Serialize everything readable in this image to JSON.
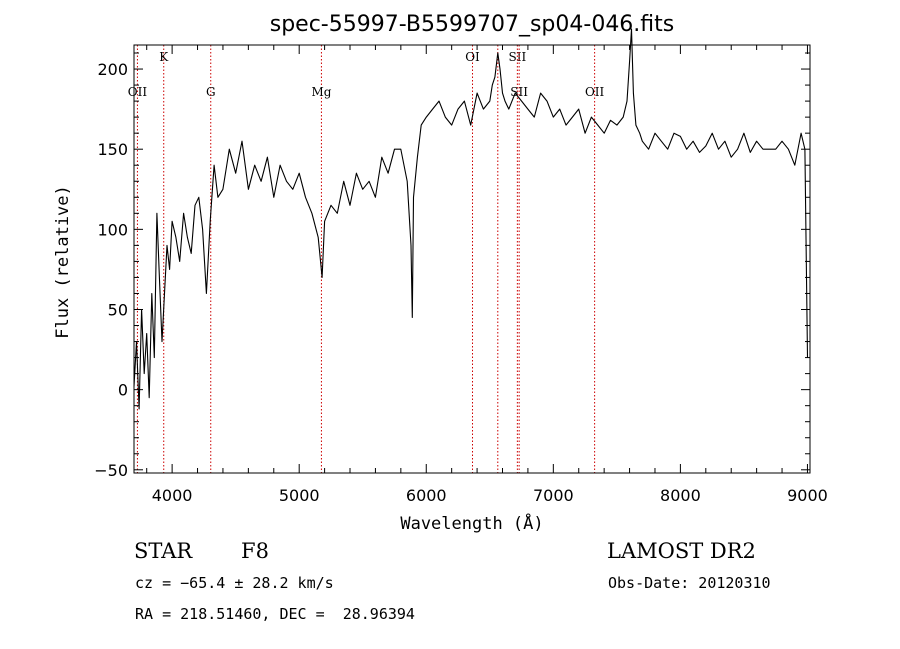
{
  "chart_data": {
    "type": "line",
    "title": "spec-55997-B5599707_sp04-046.fits",
    "xlabel": "Wavelength (Å)",
    "ylabel": "Flux (relative)",
    "xlim": [
      3700,
      9020
    ],
    "ylim": [
      -52,
      215
    ],
    "x_ticks": [
      4000,
      5000,
      6000,
      7000,
      8000,
      9000
    ],
    "y_ticks": [
      -50,
      0,
      50,
      100,
      150,
      200
    ],
    "grid": false,
    "series": [
      {
        "color": "#000000",
        "x": [
          3700,
          3720,
          3740,
          3760,
          3780,
          3800,
          3820,
          3840,
          3860,
          3880,
          3900,
          3920,
          3940,
          3960,
          3980,
          4000,
          4030,
          4060,
          4090,
          4120,
          4150,
          4180,
          4210,
          4240,
          4270,
          4300,
          4330,
          4360,
          4400,
          4450,
          4500,
          4550,
          4600,
          4650,
          4700,
          4750,
          4800,
          4850,
          4900,
          4950,
          5000,
          5050,
          5100,
          5150,
          5180,
          5200,
          5250,
          5300,
          5350,
          5400,
          5450,
          5500,
          5550,
          5600,
          5650,
          5700,
          5750,
          5800,
          5850,
          5880,
          5890,
          5900,
          5930,
          5960,
          6000,
          6050,
          6100,
          6150,
          6200,
          6250,
          6300,
          6350,
          6400,
          6450,
          6500,
          6520,
          6540,
          6563,
          6580,
          6600,
          6620,
          6650,
          6700,
          6750,
          6800,
          6850,
          6900,
          6950,
          7000,
          7050,
          7100,
          7150,
          7200,
          7250,
          7300,
          7350,
          7400,
          7450,
          7500,
          7550,
          7580,
          7600,
          7615,
          7630,
          7650,
          7680,
          7700,
          7750,
          7800,
          7850,
          7900,
          7950,
          8000,
          8050,
          8100,
          8150,
          8200,
          8250,
          8300,
          8350,
          8400,
          8450,
          8500,
          8550,
          8600,
          8650,
          8700,
          8750,
          8800,
          8850,
          8900,
          8950,
          8980,
          9000
        ],
        "y": [
          2,
          30,
          -12,
          50,
          10,
          35,
          -5,
          60,
          20,
          110,
          70,
          30,
          60,
          90,
          75,
          105,
          95,
          80,
          110,
          95,
          85,
          115,
          120,
          100,
          60,
          105,
          140,
          120,
          125,
          150,
          135,
          155,
          125,
          140,
          130,
          145,
          120,
          140,
          130,
          125,
          135,
          120,
          110,
          95,
          70,
          105,
          115,
          110,
          130,
          115,
          135,
          125,
          130,
          120,
          145,
          135,
          150,
          150,
          130,
          90,
          45,
          120,
          145,
          165,
          170,
          175,
          180,
          170,
          165,
          175,
          180,
          165,
          185,
          175,
          180,
          190,
          195,
          210,
          200,
          185,
          180,
          175,
          185,
          180,
          175,
          170,
          185,
          180,
          170,
          175,
          165,
          170,
          175,
          160,
          170,
          165,
          160,
          168,
          165,
          170,
          180,
          205,
          225,
          185,
          165,
          160,
          155,
          150,
          160,
          155,
          150,
          160,
          158,
          150,
          155,
          148,
          152,
          160,
          150,
          155,
          145,
          150,
          160,
          148,
          155,
          150,
          150,
          150,
          155,
          150,
          140,
          160,
          150,
          20
        ]
      }
    ],
    "lines": [
      {
        "name": "OII",
        "x": 3727,
        "label_row": 2
      },
      {
        "name": "K",
        "x": 3934,
        "label_row": 1
      },
      {
        "name": "G",
        "x": 4304,
        "label_row": 2
      },
      {
        "name": "Mg",
        "x": 5175,
        "label_row": 2
      },
      {
        "name": "OI",
        "x": 6364,
        "label_row": 1
      },
      {
        "name": "SII",
        "x": 6717,
        "label_row": 1
      },
      {
        "name": "SII",
        "x": 6731,
        "label_row": 2
      },
      {
        "name": "OII",
        "x": 7325,
        "label_row": 2
      }
    ],
    "extra_line_x": 6563,
    "line_color": "#cc0000"
  },
  "info": {
    "object_class": "STAR",
    "subclass": "F8",
    "survey": "LAMOST DR2",
    "cz": "cz = −65.4 ± 28.2 km/s",
    "obs_date": "Obs-Date: 20120310",
    "coords": "RA = 218.51460, DEC =  28.96394"
  }
}
